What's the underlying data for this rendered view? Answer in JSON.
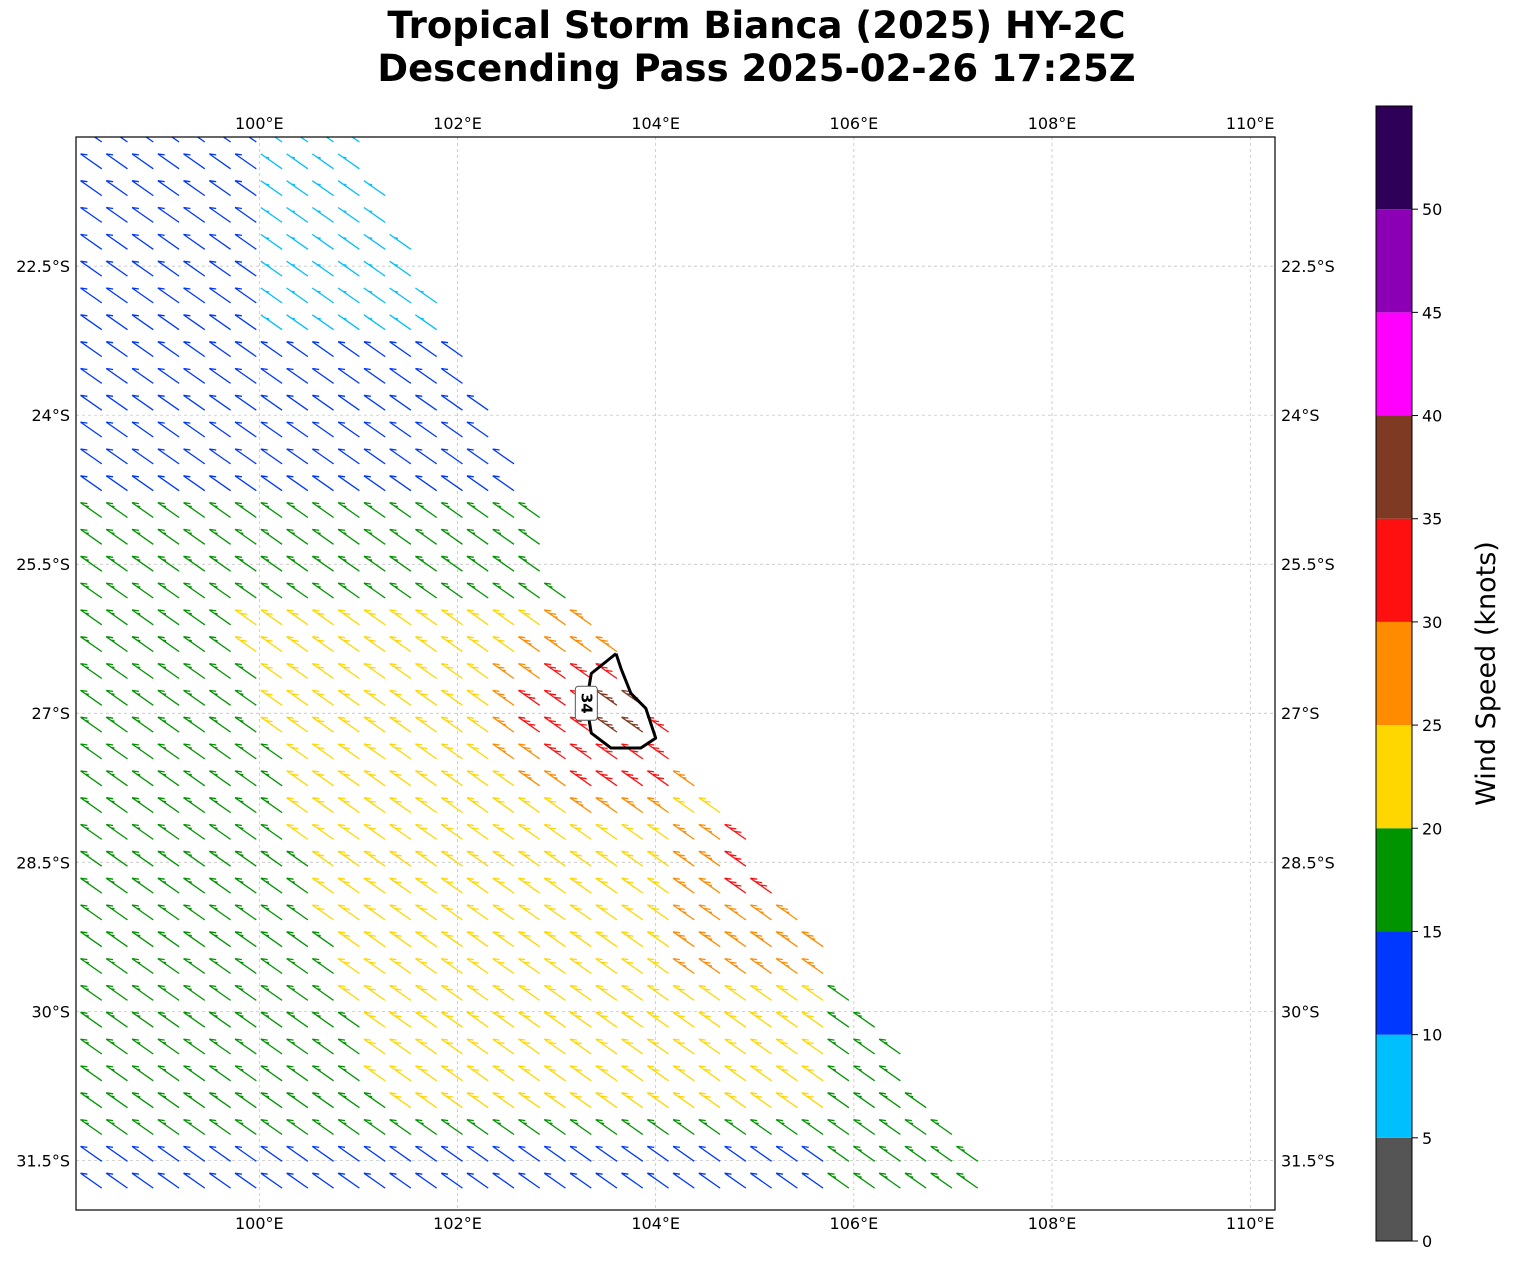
{
  "title": {
    "line1": "Tropical Storm Bianca (2025) HY-2C",
    "line2": "Descending Pass 2025-02-26 17:25Z"
  },
  "chart_data": {
    "type": "wind-barb-map",
    "projection": "PlateCarree",
    "xlim": [
      98.15,
      110.25
    ],
    "ylim": [
      -32.0,
      -21.2
    ],
    "x_ticks": [
      100,
      102,
      104,
      106,
      108,
      110
    ],
    "x_tick_labels": [
      "100°E",
      "102°E",
      "104°E",
      "106°E",
      "108°E",
      "110°E"
    ],
    "y_ticks": [
      -22.5,
      -24,
      -25.5,
      -27,
      -28.5,
      -30,
      -31.5
    ],
    "y_tick_labels": [
      "22.5°S",
      "24°S",
      "25.5°S",
      "27°S",
      "28.5°S",
      "30°S",
      "31.5°S"
    ],
    "grid": true,
    "swath": {
      "description": "Scatterometer swath running from NW to SE; east edge from ~101.5E,22.5S to ~107.5E,32S",
      "east_edge": [
        [
          101.0,
          -21.2
        ],
        [
          103.2,
          -25.8
        ],
        [
          107.6,
          -32.0
        ]
      ]
    },
    "wind_regions": [
      {
        "label": "5-10 kt",
        "lon": 101.0,
        "lat": -21.9
      },
      {
        "label": "10-15 kt",
        "lon": 100.0,
        "lat": -23.0
      },
      {
        "label": "15-20 kt",
        "lon": 100.0,
        "lat": -27.0
      },
      {
        "label": "20-25 kt",
        "lon": 102.3,
        "lat": -28.6
      },
      {
        "label": "25-30 kt",
        "lon": 104.7,
        "lat": -28.9
      },
      {
        "label": "30-35 kt",
        "lon": 104.5,
        "lat": -27.9
      },
      {
        "label": "35-40 kt",
        "lon": 103.7,
        "lat": -26.9
      }
    ],
    "contour_34kt": {
      "level_label": "34",
      "path": [
        [
          103.6,
          -26.4
        ],
        [
          103.35,
          -26.6
        ],
        [
          103.3,
          -26.9
        ],
        [
          103.35,
          -27.2
        ],
        [
          103.55,
          -27.35
        ],
        [
          103.85,
          -27.35
        ],
        [
          104.0,
          -27.25
        ],
        [
          103.9,
          -26.95
        ],
        [
          103.75,
          -26.8
        ],
        [
          103.65,
          -26.55
        ],
        [
          103.6,
          -26.4
        ]
      ]
    },
    "colorbar": {
      "label": "Wind Speed (knots)",
      "bounds": [
        0,
        5,
        10,
        15,
        20,
        25,
        30,
        35,
        40,
        45,
        50,
        55
      ],
      "tick_labels": [
        "0",
        "5",
        "10",
        "15",
        "20",
        "25",
        "30",
        "35",
        "40",
        "45",
        "50"
      ],
      "colors": [
        "#555555",
        "#00BFFF",
        "#0038FF",
        "#009400",
        "#FFD700",
        "#FF8C00",
        "#FF1010",
        "#7F3A24",
        "#FF00FF",
        "#8B00B5",
        "#2E0057"
      ]
    }
  }
}
